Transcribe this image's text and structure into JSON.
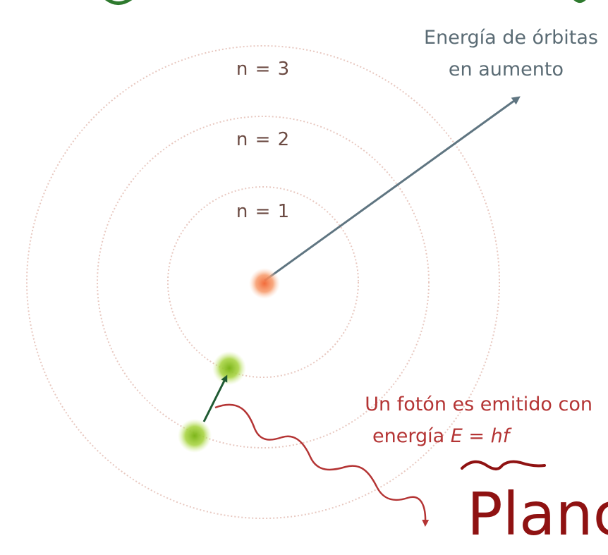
{
  "diagram": {
    "title_orbits": {
      "n1": "n = 1",
      "n2": "n = 2",
      "n3": "n = 3"
    },
    "energy_label": {
      "line1": "Energía de órbitas",
      "line2": "en aumento"
    },
    "photon_label": {
      "line1": "Un fotón es emitido con",
      "line2_prefix": "energía ",
      "line2_formula": "E = hf"
    },
    "handwritten": {
      "text": "Planck"
    },
    "colors": {
      "orbit": "#e8c8c0",
      "nucleus": "#f26b3a",
      "electron": "#8fc31f",
      "energy_arrow": "#5f7581",
      "transition_arrow": "#1f5a32",
      "photon_wave": "#b43434",
      "handwriting": "#8f1212",
      "marker_green": "#2e7a2e"
    }
  }
}
